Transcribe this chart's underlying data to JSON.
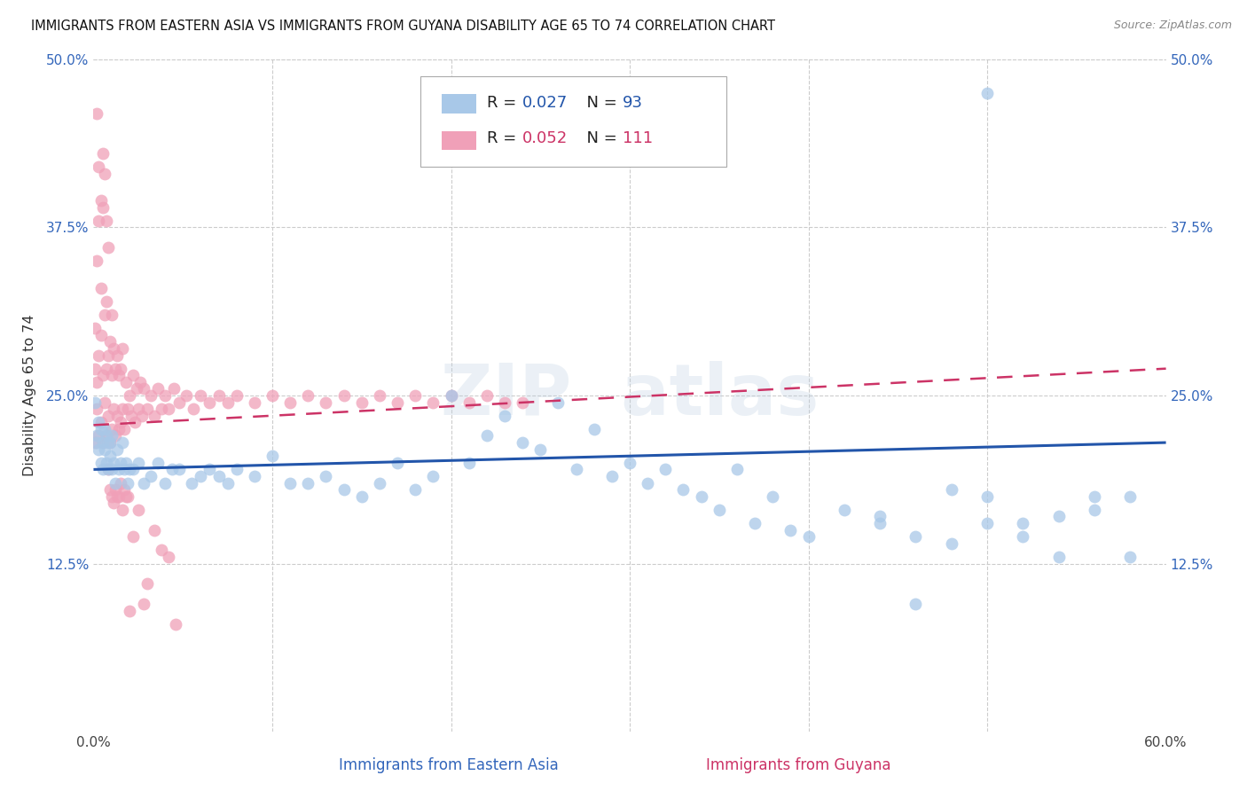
{
  "title": "IMMIGRANTS FROM EASTERN ASIA VS IMMIGRANTS FROM GUYANA DISABILITY AGE 65 TO 74 CORRELATION CHART",
  "source": "Source: ZipAtlas.com",
  "xlabel_blue": "Immigrants from Eastern Asia",
  "xlabel_pink": "Immigrants from Guyana",
  "ylabel": "Disability Age 65 to 74",
  "xlim": [
    0.0,
    0.6
  ],
  "ylim": [
    0.0,
    0.5
  ],
  "xticks": [
    0.0,
    0.1,
    0.2,
    0.3,
    0.4,
    0.5,
    0.6
  ],
  "xticklabels": [
    "0.0%",
    "",
    "",
    "",
    "",
    "",
    "60.0%"
  ],
  "yticks_left": [
    0.0,
    0.125,
    0.25,
    0.375,
    0.5
  ],
  "yticks_right": [
    0.0,
    0.125,
    0.25,
    0.375,
    0.5
  ],
  "yticklabels_left": [
    "",
    "12.5%",
    "25.0%",
    "37.5%",
    "50.0%"
  ],
  "yticklabels_right": [
    "",
    "12.5%",
    "25.0%",
    "37.5%",
    "50.0%"
  ],
  "blue_R": 0.027,
  "blue_N": 93,
  "pink_R": 0.052,
  "pink_N": 111,
  "blue_color": "#a8c8e8",
  "pink_color": "#f0a0b8",
  "blue_line_color": "#2255aa",
  "pink_line_color": "#cc3366",
  "blue_line_y0": 0.195,
  "blue_line_y1": 0.215,
  "pink_line_y0": 0.228,
  "pink_line_y1": 0.27,
  "blue_scatter_x": [
    0.001,
    0.002,
    0.002,
    0.003,
    0.003,
    0.004,
    0.004,
    0.005,
    0.005,
    0.006,
    0.006,
    0.007,
    0.007,
    0.008,
    0.008,
    0.009,
    0.009,
    0.01,
    0.01,
    0.011,
    0.012,
    0.013,
    0.014,
    0.015,
    0.016,
    0.017,
    0.018,
    0.019,
    0.02,
    0.022,
    0.025,
    0.028,
    0.032,
    0.036,
    0.04,
    0.044,
    0.048,
    0.055,
    0.06,
    0.065,
    0.07,
    0.075,
    0.08,
    0.09,
    0.1,
    0.11,
    0.12,
    0.13,
    0.14,
    0.15,
    0.16,
    0.17,
    0.18,
    0.19,
    0.2,
    0.21,
    0.22,
    0.23,
    0.24,
    0.25,
    0.26,
    0.27,
    0.28,
    0.29,
    0.3,
    0.31,
    0.32,
    0.33,
    0.34,
    0.35,
    0.36,
    0.37,
    0.38,
    0.39,
    0.4,
    0.42,
    0.44,
    0.46,
    0.48,
    0.5,
    0.52,
    0.54,
    0.56,
    0.58,
    0.44,
    0.48,
    0.5,
    0.52,
    0.54,
    0.56,
    0.58,
    0.46,
    0.5
  ],
  "blue_scatter_y": [
    0.245,
    0.22,
    0.215,
    0.23,
    0.21,
    0.2,
    0.225,
    0.215,
    0.195,
    0.21,
    0.225,
    0.2,
    0.22,
    0.215,
    0.195,
    0.205,
    0.215,
    0.22,
    0.195,
    0.2,
    0.185,
    0.21,
    0.195,
    0.2,
    0.215,
    0.195,
    0.2,
    0.185,
    0.195,
    0.195,
    0.2,
    0.185,
    0.19,
    0.2,
    0.185,
    0.195,
    0.195,
    0.185,
    0.19,
    0.195,
    0.19,
    0.185,
    0.195,
    0.19,
    0.205,
    0.185,
    0.185,
    0.19,
    0.18,
    0.175,
    0.185,
    0.2,
    0.18,
    0.19,
    0.25,
    0.2,
    0.22,
    0.235,
    0.215,
    0.21,
    0.245,
    0.195,
    0.225,
    0.19,
    0.2,
    0.185,
    0.195,
    0.18,
    0.175,
    0.165,
    0.195,
    0.155,
    0.175,
    0.15,
    0.145,
    0.165,
    0.16,
    0.145,
    0.18,
    0.155,
    0.145,
    0.16,
    0.175,
    0.13,
    0.155,
    0.14,
    0.175,
    0.155,
    0.13,
    0.165,
    0.175,
    0.095,
    0.475
  ],
  "pink_scatter_x": [
    0.001,
    0.001,
    0.001,
    0.002,
    0.002,
    0.002,
    0.003,
    0.003,
    0.003,
    0.004,
    0.004,
    0.004,
    0.005,
    0.005,
    0.005,
    0.006,
    0.006,
    0.007,
    0.007,
    0.007,
    0.008,
    0.008,
    0.008,
    0.009,
    0.009,
    0.01,
    0.01,
    0.01,
    0.011,
    0.011,
    0.012,
    0.012,
    0.013,
    0.013,
    0.014,
    0.014,
    0.015,
    0.015,
    0.016,
    0.016,
    0.017,
    0.018,
    0.019,
    0.02,
    0.021,
    0.022,
    0.023,
    0.024,
    0.025,
    0.026,
    0.027,
    0.028,
    0.03,
    0.032,
    0.034,
    0.036,
    0.038,
    0.04,
    0.042,
    0.045,
    0.048,
    0.052,
    0.056,
    0.06,
    0.065,
    0.07,
    0.075,
    0.08,
    0.09,
    0.1,
    0.11,
    0.12,
    0.13,
    0.14,
    0.15,
    0.16,
    0.17,
    0.18,
    0.19,
    0.2,
    0.21,
    0.22,
    0.23,
    0.24,
    0.002,
    0.003,
    0.004,
    0.005,
    0.006,
    0.007,
    0.008,
    0.009,
    0.01,
    0.011,
    0.012,
    0.013,
    0.014,
    0.015,
    0.016,
    0.017,
    0.018,
    0.019,
    0.02,
    0.022,
    0.025,
    0.028,
    0.03,
    0.034,
    0.038,
    0.042,
    0.046
  ],
  "pink_scatter_y": [
    0.215,
    0.27,
    0.3,
    0.24,
    0.26,
    0.35,
    0.22,
    0.28,
    0.38,
    0.23,
    0.295,
    0.33,
    0.215,
    0.265,
    0.39,
    0.245,
    0.31,
    0.22,
    0.27,
    0.32,
    0.235,
    0.28,
    0.36,
    0.215,
    0.29,
    0.225,
    0.265,
    0.31,
    0.24,
    0.285,
    0.22,
    0.27,
    0.235,
    0.28,
    0.225,
    0.265,
    0.23,
    0.27,
    0.24,
    0.285,
    0.225,
    0.26,
    0.24,
    0.25,
    0.235,
    0.265,
    0.23,
    0.255,
    0.24,
    0.26,
    0.235,
    0.255,
    0.24,
    0.25,
    0.235,
    0.255,
    0.24,
    0.25,
    0.24,
    0.255,
    0.245,
    0.25,
    0.24,
    0.25,
    0.245,
    0.25,
    0.245,
    0.25,
    0.245,
    0.25,
    0.245,
    0.25,
    0.245,
    0.25,
    0.245,
    0.25,
    0.245,
    0.25,
    0.245,
    0.25,
    0.245,
    0.25,
    0.245,
    0.245,
    0.46,
    0.42,
    0.395,
    0.43,
    0.415,
    0.38,
    0.195,
    0.18,
    0.175,
    0.17,
    0.18,
    0.175,
    0.175,
    0.185,
    0.165,
    0.18,
    0.175,
    0.175,
    0.09,
    0.145,
    0.165,
    0.095,
    0.11,
    0.15,
    0.135,
    0.13,
    0.08
  ]
}
